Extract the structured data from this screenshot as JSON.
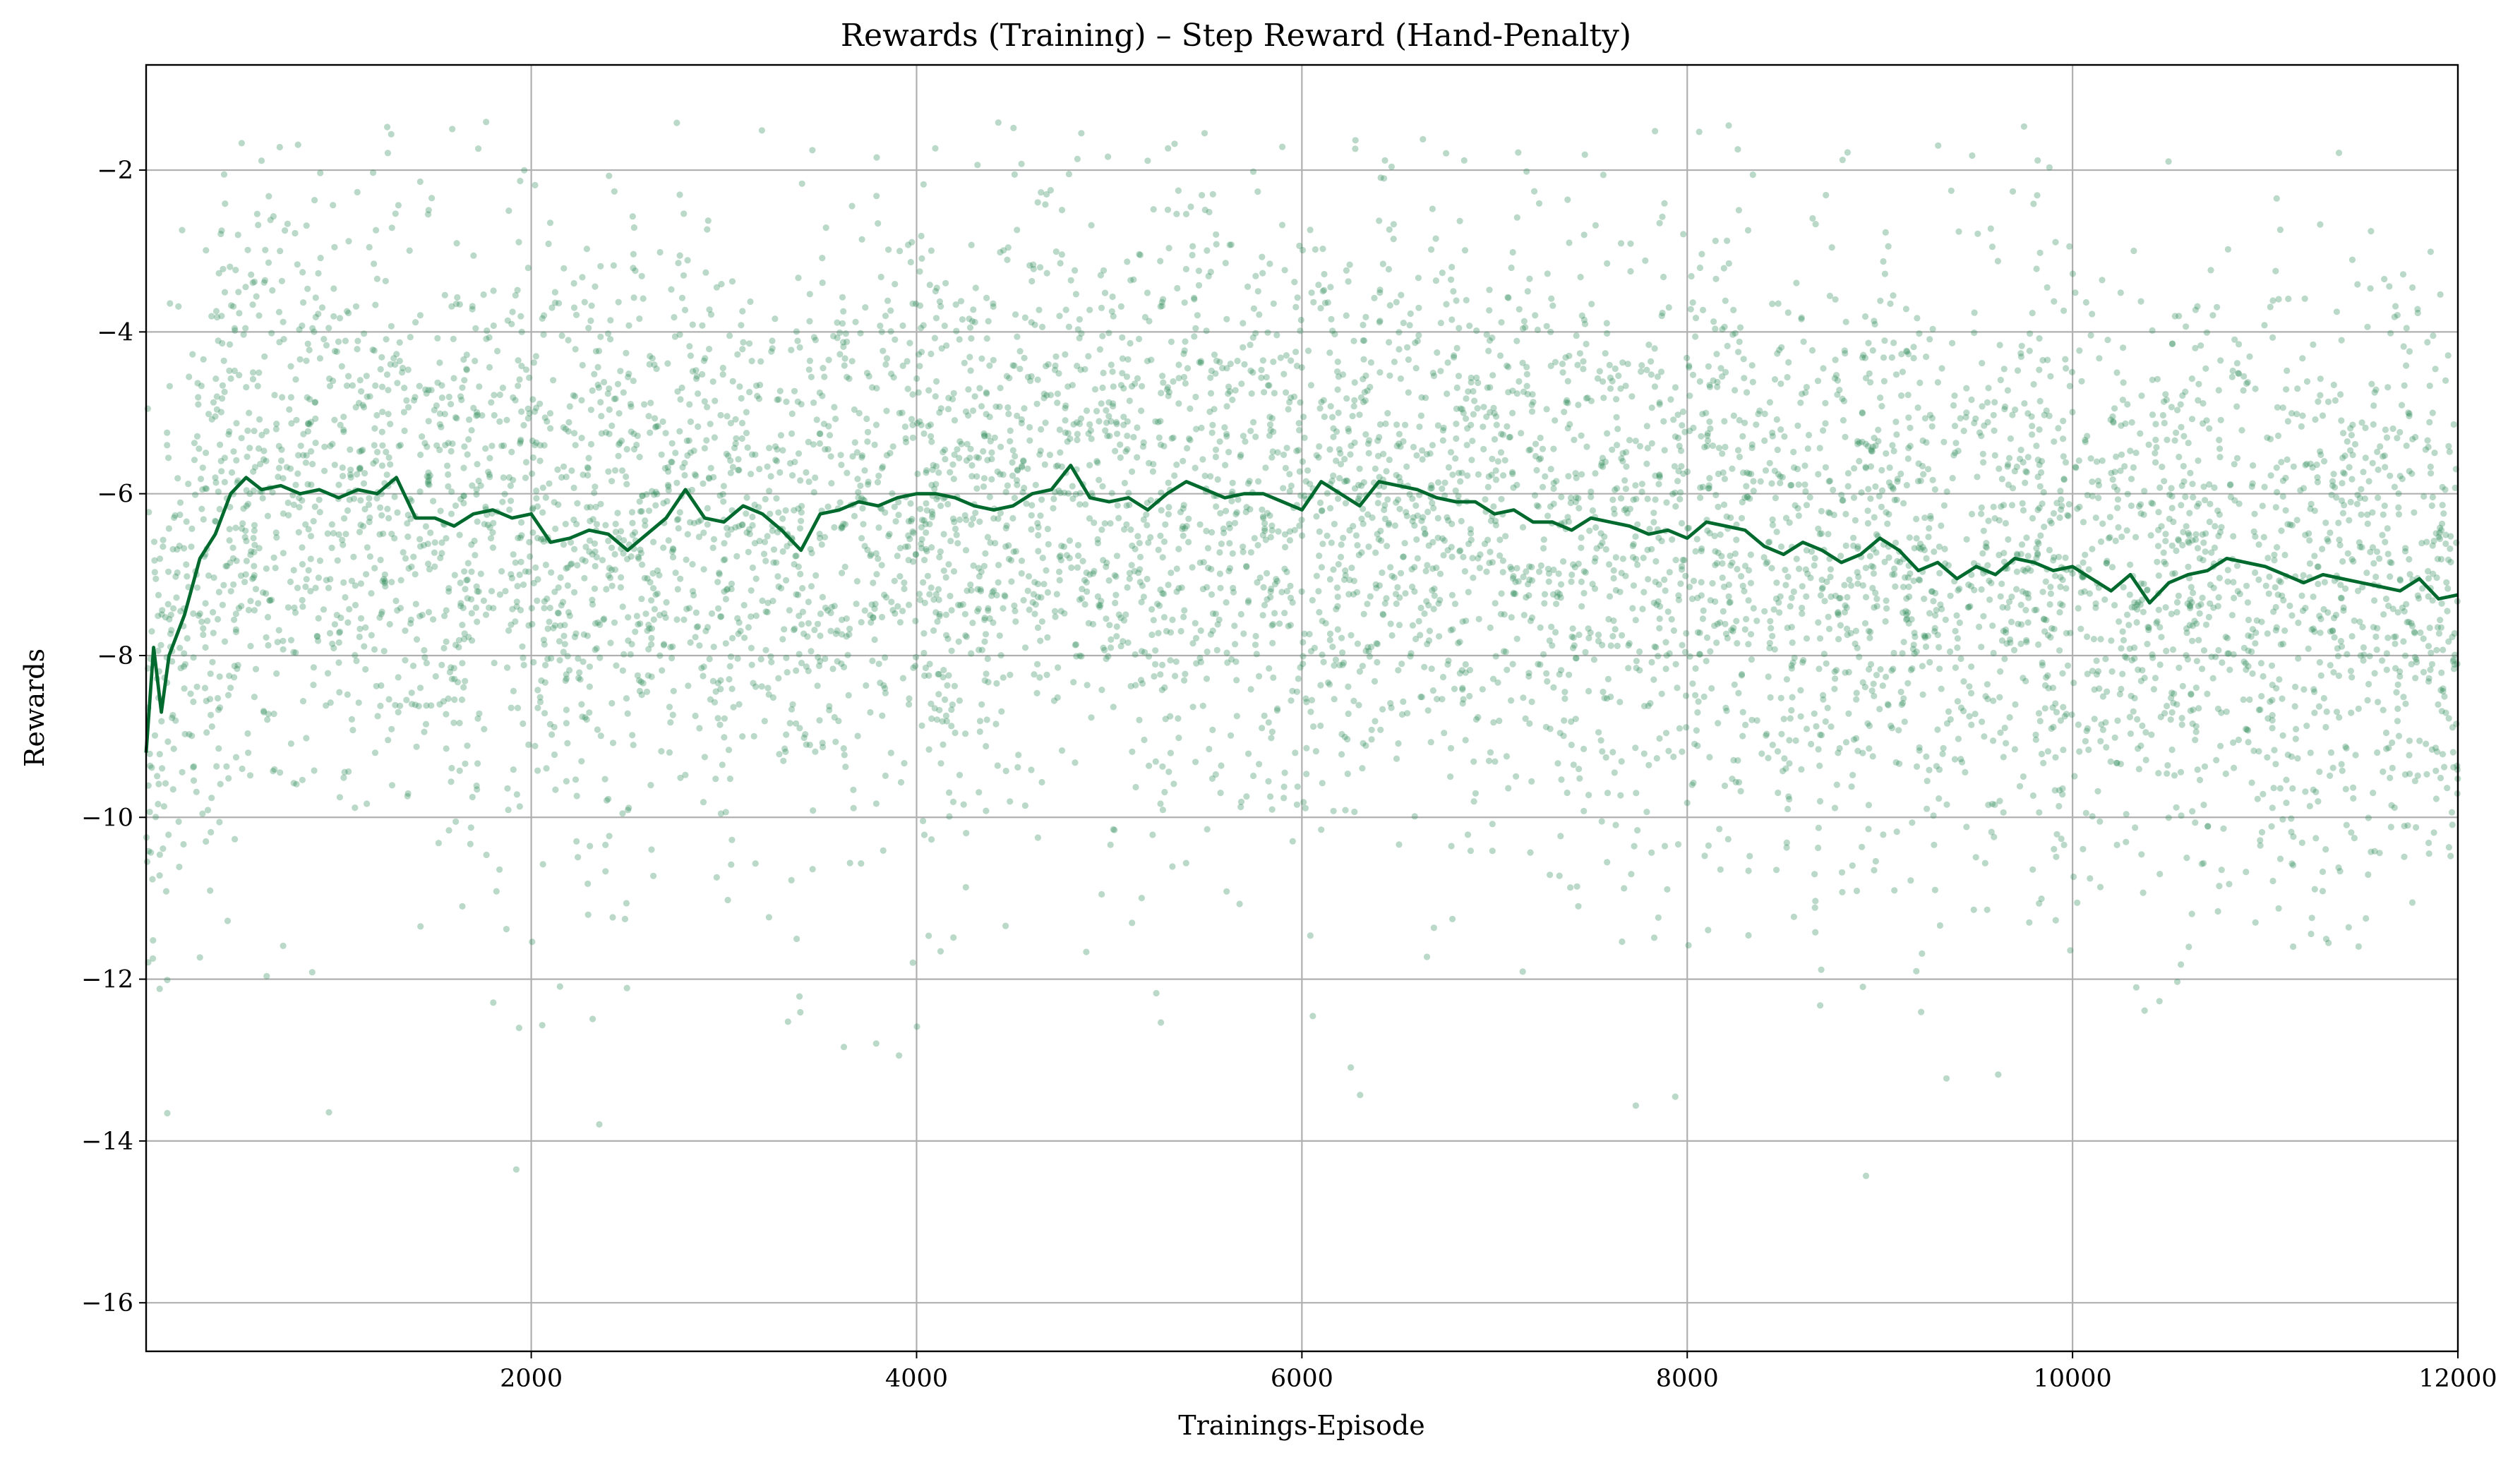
{
  "chart_data": {
    "type": "scatter",
    "title": "Rewards (Training) – Step Reward (Hand-Penalty)",
    "xlabel": "Trainings-Episode",
    "ylabel": "Rewards",
    "xlim": [
      1,
      12000
    ],
    "ylim": [
      -16.6,
      -0.7
    ],
    "xticks": [
      2000,
      4000,
      6000,
      8000,
      10000,
      12000
    ],
    "xtick_labels": [
      "2000",
      "4000",
      "6000",
      "8000",
      "10000",
      "12000"
    ],
    "yticks": [
      -16,
      -14,
      -12,
      -10,
      -8,
      -6,
      -4,
      -2
    ],
    "ytick_labels": [
      "−16",
      "−14",
      "−12",
      "−10",
      "−8",
      "−6",
      "−4",
      "−2"
    ],
    "grid": true,
    "colors": {
      "points": "#2e8b57",
      "moving_average": "#006a2e"
    },
    "series": [
      {
        "kind": "scatter",
        "note_visible": false,
        "count": 7000,
        "spread_std": 1.75,
        "seed": 20240611
      },
      {
        "kind": "line",
        "x": [
          1,
          40,
          80,
          120,
          200,
          280,
          360,
          440,
          520,
          600,
          700,
          800,
          900,
          1000,
          1100,
          1200,
          1300,
          1400,
          1500,
          1600,
          1700,
          1800,
          1900,
          2000,
          2100,
          2200,
          2300,
          2400,
          2500,
          2600,
          2700,
          2800,
          2900,
          3000,
          3100,
          3200,
          3300,
          3400,
          3500,
          3600,
          3700,
          3800,
          3900,
          4000,
          4100,
          4200,
          4300,
          4400,
          4500,
          4600,
          4700,
          4800,
          4900,
          5000,
          5100,
          5200,
          5300,
          5400,
          5500,
          5600,
          5700,
          5800,
          5900,
          6000,
          6100,
          6200,
          6300,
          6400,
          6500,
          6600,
          6700,
          6800,
          6900,
          7000,
          7100,
          7200,
          7300,
          7400,
          7500,
          7600,
          7700,
          7800,
          7900,
          8000,
          8100,
          8200,
          8300,
          8400,
          8500,
          8600,
          8700,
          8800,
          8900,
          9000,
          9100,
          9200,
          9300,
          9400,
          9500,
          9600,
          9700,
          9800,
          9900,
          10000,
          10100,
          10200,
          10300,
          10400,
          10500,
          10600,
          10700,
          10800,
          10900,
          11000,
          11100,
          11200,
          11300,
          11400,
          11500,
          11600,
          11700,
          11800,
          11900,
          12000
        ],
        "y": [
          -9.2,
          -7.9,
          -8.7,
          -8.0,
          -7.5,
          -6.8,
          -6.5,
          -6.0,
          -5.8,
          -5.95,
          -5.9,
          -6.0,
          -5.95,
          -6.05,
          -5.95,
          -6.0,
          -5.8,
          -6.3,
          -6.3,
          -6.4,
          -6.25,
          -6.2,
          -6.3,
          -6.25,
          -6.6,
          -6.55,
          -6.45,
          -6.5,
          -6.7,
          -6.5,
          -6.3,
          -5.95,
          -6.3,
          -6.35,
          -6.15,
          -6.25,
          -6.45,
          -6.7,
          -6.25,
          -6.2,
          -6.1,
          -6.15,
          -6.05,
          -6.0,
          -6.0,
          -6.05,
          -6.15,
          -6.2,
          -6.15,
          -6.0,
          -5.95,
          -5.65,
          -6.05,
          -6.1,
          -6.05,
          -6.2,
          -6.0,
          -5.85,
          -5.95,
          -6.05,
          -6.0,
          -6.0,
          -6.1,
          -6.2,
          -5.85,
          -6.0,
          -6.15,
          -5.85,
          -5.9,
          -5.95,
          -6.05,
          -6.1,
          -6.1,
          -6.25,
          -6.2,
          -6.35,
          -6.35,
          -6.45,
          -6.3,
          -6.35,
          -6.4,
          -6.5,
          -6.45,
          -6.55,
          -6.35,
          -6.4,
          -6.45,
          -6.65,
          -6.75,
          -6.6,
          -6.7,
          -6.85,
          -6.75,
          -6.55,
          -6.7,
          -6.95,
          -6.85,
          -7.05,
          -6.9,
          -7.0,
          -6.8,
          -6.85,
          -6.95,
          -6.9,
          -7.05,
          -7.2,
          -7.0,
          -7.35,
          -7.1,
          -7.0,
          -6.95,
          -6.8,
          -6.85,
          -6.9,
          -7.0,
          -7.1,
          -7.0,
          -7.05,
          -7.1,
          -7.15,
          -7.2,
          -7.05,
          -7.3,
          -7.25
        ]
      }
    ]
  }
}
